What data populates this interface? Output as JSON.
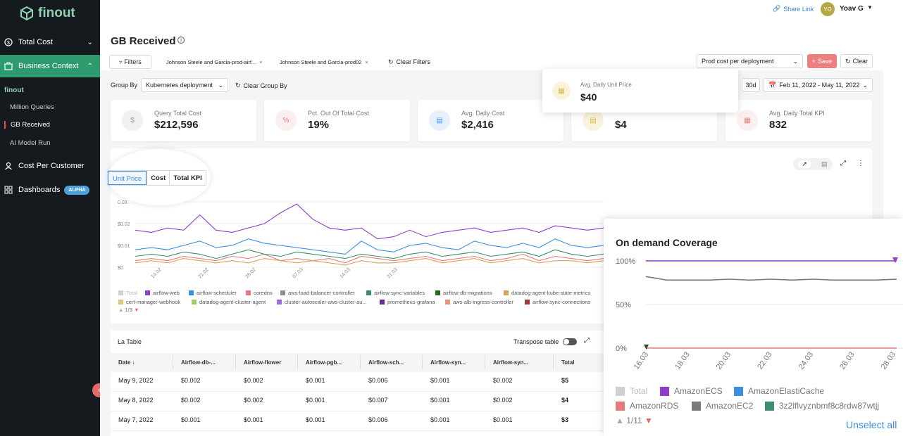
{
  "sidebar": {
    "logo_text": "finout",
    "nav": [
      {
        "label": "Total Cost",
        "icon": "dollar-icon"
      },
      {
        "label": "Business Context",
        "icon": "briefcase-icon"
      },
      {
        "label": "Cost Per Customer",
        "icon": "user-icon"
      },
      {
        "label": "Dashboards",
        "icon": "grid-icon",
        "badge": "ALPHA"
      }
    ],
    "section_label": "finout",
    "sub_items": [
      "Million Queries",
      "GB Received",
      "AI Model Run"
    ]
  },
  "header": {
    "share_link": "Share Link",
    "user_initials": "YO",
    "user_name": "Yoav G",
    "page_title": "GB Received"
  },
  "filters": {
    "filters_label": "Filters",
    "chips": [
      "Johnson Steele and Garcia-prod-airf...",
      "Johnson Steele and Garcia-prod02"
    ],
    "clear_filters": "Clear Filters",
    "view_select": "Prod cost per deployment",
    "save": "Save",
    "clear": "Clear"
  },
  "group_by": {
    "label": "Group By",
    "value": "Kubernetes deployment",
    "clear": "Clear Group By",
    "range_30d": "30d",
    "date_range": "Feb 11, 2022 - May 11, 2022"
  },
  "kpis": [
    {
      "label": "Query Total Cost",
      "value": "$212,596",
      "icon": "$"
    },
    {
      "label": "Pct. Out Of Total Cost",
      "value": "19%",
      "icon": "%"
    },
    {
      "label": "Avg. Daily Cost",
      "value": "$2,416",
      "icon": "chart"
    },
    {
      "label": "",
      "value": "$4",
      "icon": "chart"
    },
    {
      "label": "Avg. Daily Total KPI",
      "value": "832",
      "icon": "calc"
    }
  ],
  "tooltip_card": {
    "label": "Avg. Daily Unit Price",
    "value": "$40"
  },
  "chart_tabs": [
    "Unit Price",
    "Cost",
    "Total KPI"
  ],
  "chart_data": [
    {
      "type": "line",
      "y_ticks": [
        "0.03",
        "$0.02",
        "$0.01",
        "$0"
      ],
      "x_ticks": [
        "14.02",
        "21.02",
        "28.02",
        "07.03",
        "14.03",
        "21.03"
      ],
      "legend": [
        {
          "name": "Total",
          "color": "#d0d0d0"
        },
        {
          "name": "airflow-web",
          "color": "#8e3ec9"
        },
        {
          "name": "airflow-scheduler",
          "color": "#3b8fe0"
        },
        {
          "name": "coredns",
          "color": "#e57b7b"
        },
        {
          "name": "aws-load-balancer-controller",
          "color": "#8a8f96"
        },
        {
          "name": "airflow-sync-variables",
          "color": "#3e8e6e"
        },
        {
          "name": "airflow-db-migrations",
          "color": "#2a6b1e"
        },
        {
          "name": "datadog-agent-kube-state-metrics",
          "color": "#d9a25a"
        },
        {
          "name": "cert-manager-webhook",
          "color": "#d6c97a"
        },
        {
          "name": "datadog-agent-cluster-agent",
          "color": "#a4c96a"
        },
        {
          "name": "cluster-autoscaler-aws-cluster-au...",
          "color": "#a36bd9"
        },
        {
          "name": "prometheus-grafana",
          "color": "#6b2a8e"
        },
        {
          "name": "aws-alb-ingress-controller",
          "color": "#e8967a"
        },
        {
          "name": "airflow-sync-connections",
          "color": "#a23a3a"
        }
      ],
      "pager": "1/3",
      "series": [
        {
          "name": "airflow-web",
          "color": "#8e3ec9",
          "values": [
            0.017,
            0.016,
            0.018,
            0.017,
            0.024,
            0.017,
            0.016,
            0.018,
            0.02,
            0.025,
            0.029,
            0.022,
            0.018,
            0.017,
            0.018,
            0.013,
            0.014,
            0.017,
            0.014,
            0.016,
            0.017,
            0.018,
            0.016,
            0.017,
            0.018,
            0.016,
            0.019,
            0.018,
            0.017,
            0.018
          ]
        },
        {
          "name": "airflow-scheduler",
          "color": "#3b8fe0",
          "values": [
            0.008,
            0.009,
            0.008,
            0.01,
            0.012,
            0.009,
            0.01,
            0.013,
            0.011,
            0.01,
            0.009,
            0.008,
            0.007,
            0.006,
            0.012,
            0.008,
            0.007,
            0.01,
            0.011,
            0.009,
            0.008,
            0.012,
            0.01,
            0.009,
            0.011,
            0.009,
            0.013,
            0.01,
            0.009,
            0.01
          ]
        },
        {
          "name": "coredns",
          "color": "#e57b7b",
          "values": [
            0.003,
            0.004,
            0.003,
            0.005,
            0.004,
            0.003,
            0.005,
            0.004,
            0.006,
            0.003,
            0.004,
            0.003,
            0.004,
            0.002,
            0.005,
            0.004,
            0.003,
            0.004,
            0.005,
            0.003,
            0.004,
            0.005,
            0.003,
            0.004,
            0.006,
            0.003,
            0.005,
            0.004,
            0.003,
            0.004
          ]
        },
        {
          "name": "airflow-sync-variables",
          "color": "#3e8e6e",
          "values": [
            0.005,
            0.006,
            0.005,
            0.007,
            0.006,
            0.004,
            0.006,
            0.008,
            0.006,
            0.005,
            0.007,
            0.006,
            0.005,
            0.004,
            0.006,
            0.005,
            0.004,
            0.006,
            0.007,
            0.005,
            0.006,
            0.007,
            0.005,
            0.006,
            0.007,
            0.005,
            0.008,
            0.006,
            0.005,
            0.006
          ]
        },
        {
          "name": "datadog-agent-kube-state-metrics",
          "color": "#d9a25a",
          "values": [
            0.002,
            0.003,
            0.002,
            0.004,
            0.003,
            0.002,
            0.003,
            0.002,
            0.004,
            0.003,
            0.002,
            0.003,
            0.002,
            0.001,
            0.003,
            0.002,
            0.002,
            0.003,
            0.004,
            0.002,
            0.003,
            0.004,
            0.002,
            0.003,
            0.004,
            0.002,
            0.003,
            0.003,
            0.002,
            0.003
          ]
        }
      ]
    },
    {
      "type": "line",
      "title": "On demand Coverage",
      "y_ticks": [
        "100%",
        "50%",
        "0%"
      ],
      "x_ticks": [
        "16.03",
        "18.03",
        "20.03",
        "22.03",
        "24.03",
        "26.03",
        "28.03"
      ],
      "ylim": [
        0,
        100
      ],
      "series": [
        {
          "name": "AmazonECS",
          "color": "#8e3ec9",
          "values": [
            100,
            100,
            100,
            100,
            100,
            100,
            100,
            100,
            100,
            100,
            100,
            100,
            100
          ]
        },
        {
          "name": "AmazonEC2",
          "color": "#777b80",
          "values": [
            82,
            78,
            78,
            78,
            79,
            78,
            79,
            78,
            79,
            78,
            78,
            78,
            79
          ]
        },
        {
          "name": "AmazonRDS",
          "color": "#e57b7b",
          "values": [
            0,
            0,
            0,
            0,
            0,
            0,
            0,
            0,
            0,
            0,
            0,
            0,
            0
          ]
        }
      ],
      "legend": [
        {
          "name": "Total",
          "color": "#d0d0d0"
        },
        {
          "name": "AmazonECS",
          "color": "#8e3ec9"
        },
        {
          "name": "AmazonElastiCache",
          "color": "#3b8fe0"
        },
        {
          "name": "AmazonRDS",
          "color": "#e57b7b"
        },
        {
          "name": "AmazonEC2",
          "color": "#777b80"
        },
        {
          "name": "3z2lflvyznbmf8c8rdw87wtjj",
          "color": "#3e8e6e"
        }
      ],
      "pager": "1/11",
      "unselect": "Unselect all"
    }
  ],
  "table": {
    "title": "La Table",
    "transpose": "Transpose table",
    "columns": [
      "Date",
      "Airflow-db-...",
      "Airflow-flower",
      "Airflow-pgb...",
      "Airflow-sch...",
      "Airflow-syn...",
      "Airflow-syn...",
      "Total"
    ],
    "rows": [
      [
        "May 9, 2022",
        "$0.002",
        "$0.002",
        "$0.001",
        "$0.006",
        "$0.001",
        "$0.002",
        "$5"
      ],
      [
        "May 8, 2022",
        "$0.002",
        "$0.002",
        "$0.001",
        "$0.007",
        "$0.001",
        "$0.002",
        "$4"
      ],
      [
        "May 7, 2022",
        "$0.001",
        "$0.001",
        "$0.001",
        "$0.006",
        "$0.001",
        "$0.001",
        "$3"
      ]
    ]
  }
}
